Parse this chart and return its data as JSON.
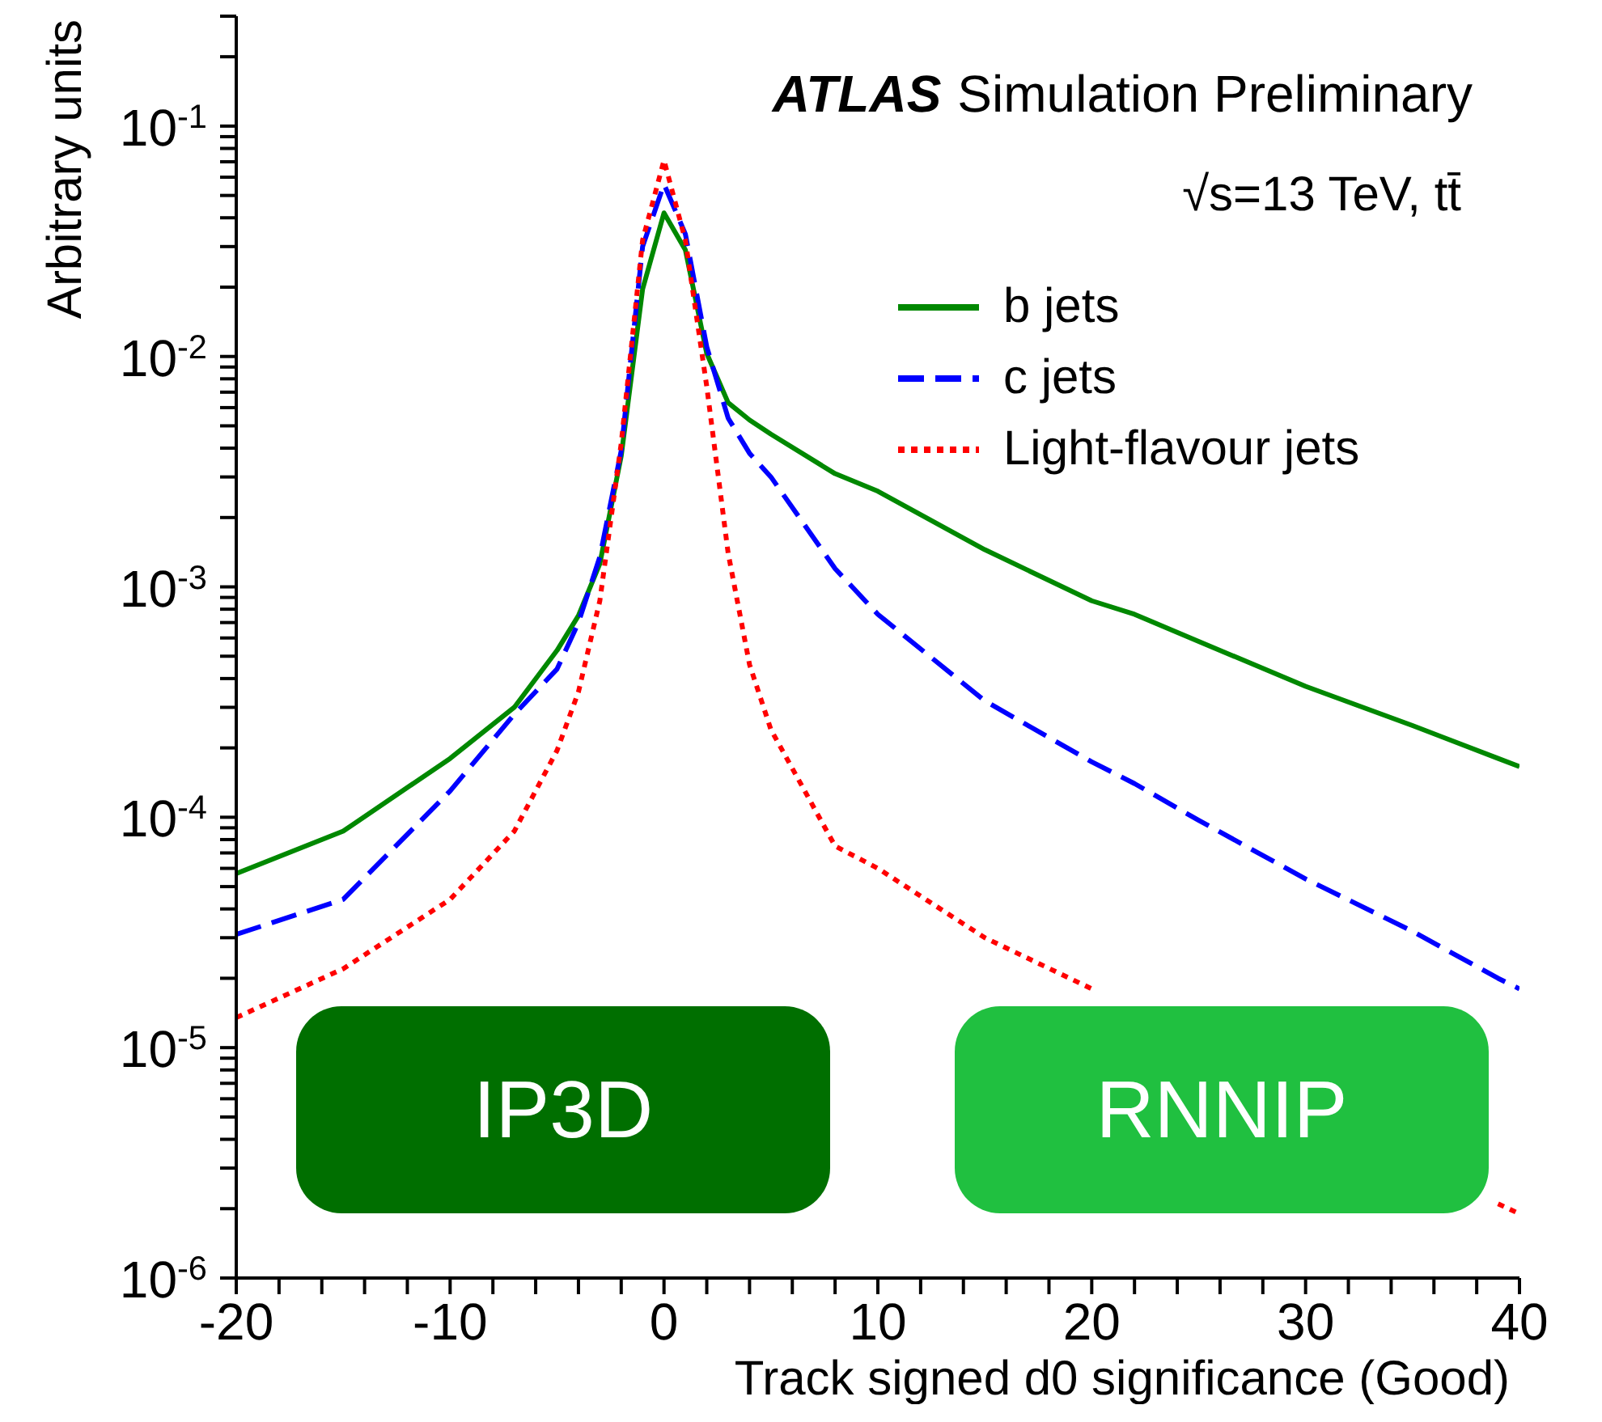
{
  "chart_data": {
    "type": "line",
    "xlabel": "Track signed d0 significance (Good)",
    "ylabel": "Arbitrary units",
    "annotations": [
      "ATLAS",
      "Simulation Preliminary",
      "√s=13 TeV, tt̄",
      "IP3D",
      "RNNIP"
    ],
    "x": [
      -20,
      -15,
      -10,
      -7,
      -5,
      -4,
      -3,
      -2,
      -1,
      0,
      1,
      2,
      3,
      4,
      5,
      8,
      10,
      15,
      20,
      22,
      25,
      30,
      35,
      39,
      40
    ],
    "series": [
      {
        "name": "b jets",
        "color": "#008800",
        "line_style": "solid",
        "values": [
          5.7e-05,
          8.7e-05,
          0.00018,
          0.0003,
          0.00053,
          0.00075,
          0.00126,
          0.0037,
          0.0196,
          0.042,
          0.029,
          0.0103,
          0.0063,
          0.0053,
          0.0046,
          0.0031,
          0.0026,
          0.00145,
          0.00087,
          0.00076,
          0.00058,
          0.00037,
          0.00025,
          0.00018,
          0.000166
        ]
      },
      {
        "name": "c jets",
        "color": "#0000ff",
        "line_style": "dashed",
        "values": [
          3.1e-05,
          4.4e-05,
          0.00013,
          0.00028,
          0.00044,
          0.0007,
          0.00135,
          0.0039,
          0.03,
          0.056,
          0.034,
          0.011,
          0.0054,
          0.0038,
          0.003,
          0.0012,
          0.00076,
          0.00032,
          0.000174,
          0.00014,
          9.7e-05,
          5.4e-05,
          3.2e-05,
          2e-05,
          1.8e-05
        ]
      },
      {
        "name": "Light-flavour jets",
        "color": "#ff0000",
        "line_style": "dotted",
        "values": [
          1.35e-05,
          2.2e-05,
          4.4e-05,
          8.7e-05,
          0.000195,
          0.00035,
          0.00087,
          0.0042,
          0.032,
          0.071,
          0.032,
          0.0074,
          0.0014,
          0.00046,
          0.00024,
          7.5e-05,
          6e-05,
          3e-05,
          1.8e-05,
          null,
          null,
          null,
          null,
          2.1e-06,
          1.9e-06
        ]
      }
    ],
    "log": "y",
    "xlim": [
      -20,
      40
    ],
    "xticks": [
      -20,
      {
        "value": -18,
        "label": null
      },
      {
        "value": -16,
        "label": null
      },
      {
        "value": -14,
        "label": null
      },
      {
        "value": -12,
        "label": null
      },
      -10,
      {
        "value": -8,
        "label": null
      },
      {
        "value": -6,
        "label": null
      },
      {
        "value": -4,
        "label": null
      },
      {
        "value": -2,
        "label": null
      },
      0,
      {
        "value": 2,
        "label": null
      },
      {
        "value": 4,
        "label": null
      },
      {
        "value": 6,
        "label": null
      },
      {
        "value": 8,
        "label": null
      },
      10,
      {
        "value": 12,
        "label": null
      },
      {
        "value": 14,
        "label": null
      },
      {
        "value": 16,
        "label": null
      },
      {
        "value": 18,
        "label": null
      },
      20,
      {
        "value": 22,
        "label": null
      },
      {
        "value": 24,
        "label": null
      },
      {
        "value": 26,
        "label": null
      },
      {
        "value": 28,
        "label": null
      },
      30,
      {
        "value": 32,
        "label": null
      },
      {
        "value": 34,
        "label": null
      },
      {
        "value": 36,
        "label": null
      },
      {
        "value": 38,
        "label": null
      },
      40
    ],
    "ylim": [
      1e-06,
      0.3
    ],
    "yticks": [
      {
        "value": 1e-06,
        "label": "10$^{-6}$"
      },
      {
        "value": 2e-06,
        "label": null
      },
      {
        "value": 3e-06,
        "label": null
      },
      {
        "value": 4e-06,
        "label": null
      },
      {
        "value": 5e-06,
        "label": null
      },
      {
        "value": 6e-06,
        "label": null
      },
      {
        "value": 7e-06,
        "label": null
      },
      {
        "value": 8e-06,
        "label": null
      },
      {
        "value": 9e-06,
        "label": null
      },
      {
        "value": 1e-05,
        "label": "10$^{-5}$"
      },
      {
        "value": 2e-05,
        "label": null
      },
      {
        "value": 3e-05,
        "label": null
      },
      {
        "value": 4e-05,
        "label": null
      },
      {
        "value": 5e-05,
        "label": null
      },
      {
        "value": 6e-05,
        "label": null
      },
      {
        "value": 7e-05,
        "label": null
      },
      {
        "value": 8e-05,
        "label": null
      },
      {
        "value": 9e-05,
        "label": null
      },
      {
        "value": 0.0001,
        "label": "10$^{-4}$"
      },
      {
        "value": 0.0002,
        "label": null
      },
      {
        "value": 0.0003,
        "label": null
      },
      {
        "value": 0.0004,
        "label": null
      },
      {
        "value": 0.0005,
        "label": null
      },
      {
        "value": 0.0006,
        "label": null
      },
      {
        "value": 0.0007,
        "label": null
      },
      {
        "value": 0.0008,
        "label": null
      },
      {
        "value": 0.0009,
        "label": null
      },
      {
        "value": 0.001,
        "label": "10$^{-3}$"
      },
      {
        "value": 0.002,
        "label": null
      },
      {
        "value": 0.003,
        "label": null
      },
      {
        "value": 0.004,
        "label": null
      },
      {
        "value": 0.005,
        "label": null
      },
      {
        "value": 0.006,
        "label": null
      },
      {
        "value": 0.007,
        "label": null
      },
      {
        "value": 0.008,
        "label": null
      },
      {
        "value": 0.009,
        "label": null
      },
      {
        "value": 0.01,
        "label": "10$^{-2}$"
      },
      {
        "value": 0.02,
        "label": null
      },
      {
        "value": 0.03,
        "label": null
      },
      {
        "value": 0.04,
        "label": null
      },
      {
        "value": 0.05,
        "label": null
      },
      {
        "value": 0.06,
        "label": null
      },
      {
        "value": 0.07,
        "label": null
      },
      {
        "value": 0.08,
        "label": null
      },
      {
        "value": 0.09,
        "label": null
      },
      {
        "value": 0.1,
        "label": "10$^{-1}$"
      },
      {
        "value": 0.2,
        "label": null
      },
      {
        "value": 0.3,
        "label": null
      }
    ],
    "grid": false,
    "legend": "top right",
    "marker": "none"
  }
}
